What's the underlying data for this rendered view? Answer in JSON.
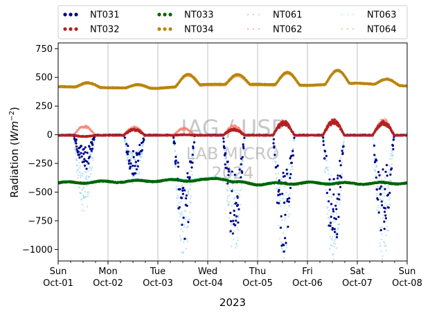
{
  "chart_data": {
    "type": "scatter",
    "xlabel": "2023",
    "ylabel_main": "Radiation (",
    "ylabel_unit": "Wm",
    "ylabel_exp": "−2",
    "ylabel_close": ")",
    "ylim": [
      -1100,
      800
    ],
    "xlim": [
      "2023-10-01",
      "2023-10-08"
    ],
    "yticks": [
      750,
      500,
      250,
      0,
      -250,
      -500,
      -750,
      -1000
    ],
    "ytick_labels": [
      "750",
      "500",
      "250",
      "0",
      "−250",
      "−500",
      "−750",
      "−1000"
    ],
    "xticks": [
      {
        "day": "Sun",
        "date": "Oct-01"
      },
      {
        "day": "Mon",
        "date": "Oct-02"
      },
      {
        "day": "Tue",
        "date": "Oct-03"
      },
      {
        "day": "Wed",
        "date": "Oct-04"
      },
      {
        "day": "Thu",
        "date": "Oct-05"
      },
      {
        "day": "Fri",
        "date": "Oct-06"
      },
      {
        "day": "Sat",
        "date": "Oct-07"
      },
      {
        "day": "Sun",
        "date": "Oct-08"
      }
    ],
    "grid": "vertical",
    "legend_placement": "top, outside",
    "watermark": [
      "IAG / USP",
      "LAB MICRO",
      "2024"
    ],
    "series": [
      {
        "name": "NT031",
        "color": "#00008b",
        "style": "dots",
        "kind": "sw_down",
        "daily_peak": [
          -290,
          -330,
          -900,
          -870,
          -950,
          -960,
          -840
        ]
      },
      {
        "name": "NT032",
        "color": "#b22222",
        "style": "dots",
        "kind": "sw_up",
        "daily_peak": [
          -10,
          50,
          5,
          50,
          110,
          120,
          110
        ]
      },
      {
        "name": "NT033",
        "color": "#006400",
        "style": "dots",
        "kind": "lw_down",
        "level": [
          -420,
          -410,
          -400,
          -395,
          -430,
          -420,
          -425,
          -420
        ]
      },
      {
        "name": "NT034",
        "color": "#b8860b",
        "style": "dots",
        "kind": "lw_up",
        "base": [
          420,
          410,
          405,
          440,
          440,
          430,
          450,
          425
        ],
        "bump": [
          40,
          30,
          100,
          85,
          110,
          120,
          50
        ]
      },
      {
        "name": "NT061",
        "color": "#87ceeb",
        "style": "light-dots",
        "kind": "sw_down_light",
        "daily_peak": [
          -640,
          -420,
          -1000,
          -1000,
          -1000,
          -1070,
          -1020
        ]
      },
      {
        "name": "NT062",
        "color": "#fa8072",
        "style": "light-dots",
        "kind": "sw_up_light",
        "daily_peak": [
          80,
          70,
          60,
          80,
          120,
          130,
          130
        ]
      },
      {
        "name": "NT063",
        "color": "#7fffd4",
        "style": "light-dots",
        "kind": "lw_down_light",
        "level": [
          -415,
          -405,
          -395,
          -385,
          -425,
          -415,
          -420,
          -415
        ]
      },
      {
        "name": "NT064",
        "color": "#f4a460",
        "style": "light-dots",
        "kind": "lw_up_light",
        "base": [
          415,
          405,
          400,
          430,
          430,
          425,
          445,
          420
        ],
        "bump": [
          35,
          28,
          95,
          80,
          105,
          115,
          48
        ]
      }
    ]
  }
}
